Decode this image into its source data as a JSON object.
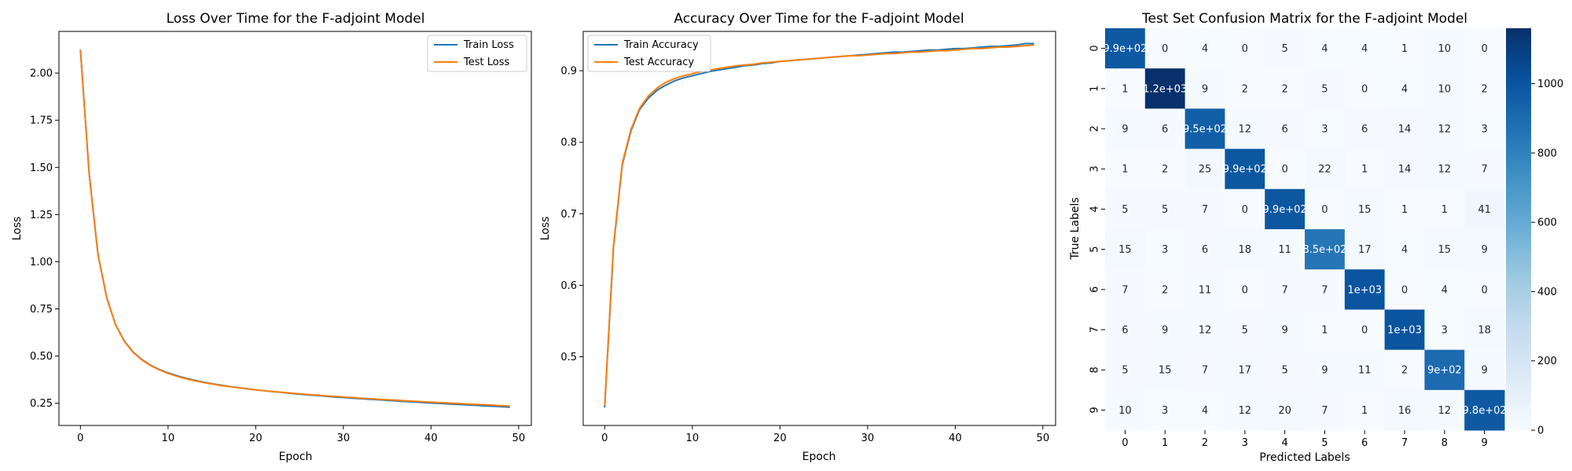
{
  "chart_data": [
    {
      "type": "line",
      "title": "Loss Over Time for the F-adjoint Model",
      "xlabel": "Epoch",
      "ylabel": "Loss",
      "xlim": [
        -2.45,
        51.45
      ],
      "ylim": [
        0.132,
        2.221
      ],
      "xticks": [
        "0",
        "10",
        "20",
        "30",
        "40",
        "50"
      ],
      "yticks": [
        "0.25",
        "0.50",
        "0.75",
        "1.00",
        "1.25",
        "1.50",
        "1.75",
        "2.00"
      ],
      "legend": "top-right",
      "series": [
        {
          "name": "Train Loss",
          "color": "#1f77b4",
          "values": [
            2.124,
            1.465,
            1.04,
            0.81,
            0.668,
            0.58,
            0.522,
            0.482,
            0.452,
            0.429,
            0.411,
            0.396,
            0.383,
            0.372,
            0.362,
            0.354,
            0.346,
            0.339,
            0.333,
            0.327,
            0.321,
            0.316,
            0.311,
            0.307,
            0.302,
            0.298,
            0.294,
            0.291,
            0.287,
            0.283,
            0.28,
            0.277,
            0.274,
            0.271,
            0.268,
            0.265,
            0.262,
            0.259,
            0.257,
            0.254,
            0.251,
            0.249,
            0.246,
            0.244,
            0.241,
            0.239,
            0.236,
            0.234,
            0.232,
            0.229
          ]
        },
        {
          "name": "Test Loss",
          "color": "#ff7f0e",
          "values": [
            2.12,
            1.46,
            1.038,
            0.808,
            0.667,
            0.578,
            0.52,
            0.48,
            0.45,
            0.427,
            0.408,
            0.393,
            0.38,
            0.369,
            0.36,
            0.352,
            0.344,
            0.338,
            0.332,
            0.326,
            0.321,
            0.316,
            0.312,
            0.308,
            0.304,
            0.3,
            0.296,
            0.293,
            0.289,
            0.286,
            0.283,
            0.28,
            0.277,
            0.274,
            0.271,
            0.268,
            0.266,
            0.263,
            0.261,
            0.258,
            0.256,
            0.253,
            0.251,
            0.249,
            0.246,
            0.244,
            0.242,
            0.24,
            0.237,
            0.235
          ]
        }
      ]
    },
    {
      "type": "line",
      "title": "Accuracy Over Time for the F-adjoint Model",
      "xlabel": "Epoch",
      "ylabel": "Loss",
      "xlim": [
        -2.45,
        51.45
      ],
      "ylim": [
        0.404,
        0.955
      ],
      "xticks": [
        "0",
        "10",
        "20",
        "30",
        "40",
        "50"
      ],
      "yticks": [
        "0.5",
        "0.6",
        "0.7",
        "0.8",
        "0.9"
      ],
      "legend": "top-left",
      "series": [
        {
          "name": "Train Accuracy",
          "color": "#1f77b4",
          "values": [
            0.429,
            0.653,
            0.768,
            0.816,
            0.846,
            0.862,
            0.873,
            0.88,
            0.886,
            0.89,
            0.893,
            0.896,
            0.899,
            0.901,
            0.903,
            0.905,
            0.907,
            0.908,
            0.91,
            0.911,
            0.913,
            0.914,
            0.915,
            0.916,
            0.917,
            0.918,
            0.919,
            0.92,
            0.921,
            0.922,
            0.923,
            0.924,
            0.925,
            0.926,
            0.926,
            0.927,
            0.928,
            0.929,
            0.929,
            0.93,
            0.931,
            0.931,
            0.932,
            0.933,
            0.934,
            0.934,
            0.935,
            0.936,
            0.938,
            0.938
          ]
        },
        {
          "name": "Test Accuracy",
          "color": "#ff7f0e",
          "values": [
            0.432,
            0.655,
            0.77,
            0.818,
            0.848,
            0.865,
            0.876,
            0.884,
            0.889,
            0.893,
            0.896,
            0.899,
            0.901,
            0.903,
            0.905,
            0.907,
            0.908,
            0.909,
            0.911,
            0.912,
            0.913,
            0.914,
            0.915,
            0.916,
            0.917,
            0.918,
            0.919,
            0.92,
            0.921,
            0.921,
            0.922,
            0.923,
            0.924,
            0.924,
            0.925,
            0.926,
            0.926,
            0.927,
            0.928,
            0.928,
            0.929,
            0.93,
            0.931,
            0.931,
            0.932,
            0.933,
            0.933,
            0.934,
            0.935,
            0.936
          ]
        }
      ]
    },
    {
      "type": "heatmap",
      "title": "Test Set Confusion Matrix for the F-adjoint Model",
      "xlabel": "Predicted Labels",
      "ylabel": "True Labels",
      "categories": [
        "0",
        "1",
        "2",
        "3",
        "4",
        "5",
        "6",
        "7",
        "8",
        "9"
      ],
      "cells": [
        [
          "9.9e+02",
          "0",
          "4",
          "0",
          "5",
          "4",
          "4",
          "1",
          "10",
          "0"
        ],
        [
          "1",
          "1.2e+03",
          "9",
          "2",
          "2",
          "5",
          "0",
          "4",
          "10",
          "2"
        ],
        [
          "9",
          "6",
          "9.5e+02",
          "12",
          "6",
          "3",
          "6",
          "14",
          "12",
          "3"
        ],
        [
          "1",
          "2",
          "25",
          "9.9e+02",
          "0",
          "22",
          "1",
          "14",
          "12",
          "7"
        ],
        [
          "5",
          "5",
          "7",
          "0",
          "9.9e+02",
          "0",
          "15",
          "1",
          "1",
          "41"
        ],
        [
          "15",
          "3",
          "6",
          "18",
          "11",
          "8.5e+02",
          "17",
          "4",
          "15",
          "9"
        ],
        [
          "7",
          "2",
          "11",
          "0",
          "7",
          "7",
          "1e+03",
          "0",
          "4",
          "0"
        ],
        [
          "6",
          "9",
          "12",
          "5",
          "9",
          "1",
          "0",
          "1e+03",
          "3",
          "18"
        ],
        [
          "5",
          "15",
          "7",
          "17",
          "5",
          "9",
          "11",
          "2",
          "9e+02",
          "9"
        ],
        [
          "10",
          "3",
          "4",
          "12",
          "20",
          "7",
          "1",
          "16",
          "12",
          "9.8e+02"
        ]
      ],
      "values": [
        [
          980,
          0,
          4,
          0,
          5,
          4,
          4,
          1,
          10,
          0
        ],
        [
          1,
          1160,
          9,
          2,
          2,
          5,
          0,
          4,
          10,
          2
        ],
        [
          9,
          6,
          950,
          12,
          6,
          3,
          6,
          14,
          12,
          3
        ],
        [
          1,
          2,
          25,
          990,
          0,
          22,
          1,
          14,
          12,
          7
        ],
        [
          5,
          5,
          7,
          0,
          990,
          0,
          15,
          1,
          1,
          41
        ],
        [
          15,
          3,
          6,
          18,
          11,
          850,
          17,
          4,
          15,
          9
        ],
        [
          7,
          2,
          11,
          0,
          7,
          7,
          1000,
          0,
          4,
          0
        ],
        [
          6,
          9,
          12,
          5,
          9,
          1,
          0,
          1000,
          3,
          18
        ],
        [
          5,
          15,
          7,
          17,
          5,
          9,
          11,
          2,
          900,
          9
        ],
        [
          10,
          3,
          4,
          12,
          20,
          7,
          1,
          16,
          12,
          980
        ]
      ],
      "colorbar": {
        "min": 0,
        "max": 1160,
        "ticks": [
          0,
          200,
          400,
          600,
          800,
          1000
        ],
        "colors": [
          "#f7fbff",
          "#deebf7",
          "#c6dbef",
          "#9ecae1",
          "#6baed6",
          "#4292c6",
          "#2171b5",
          "#08519c",
          "#08306b"
        ]
      }
    }
  ]
}
